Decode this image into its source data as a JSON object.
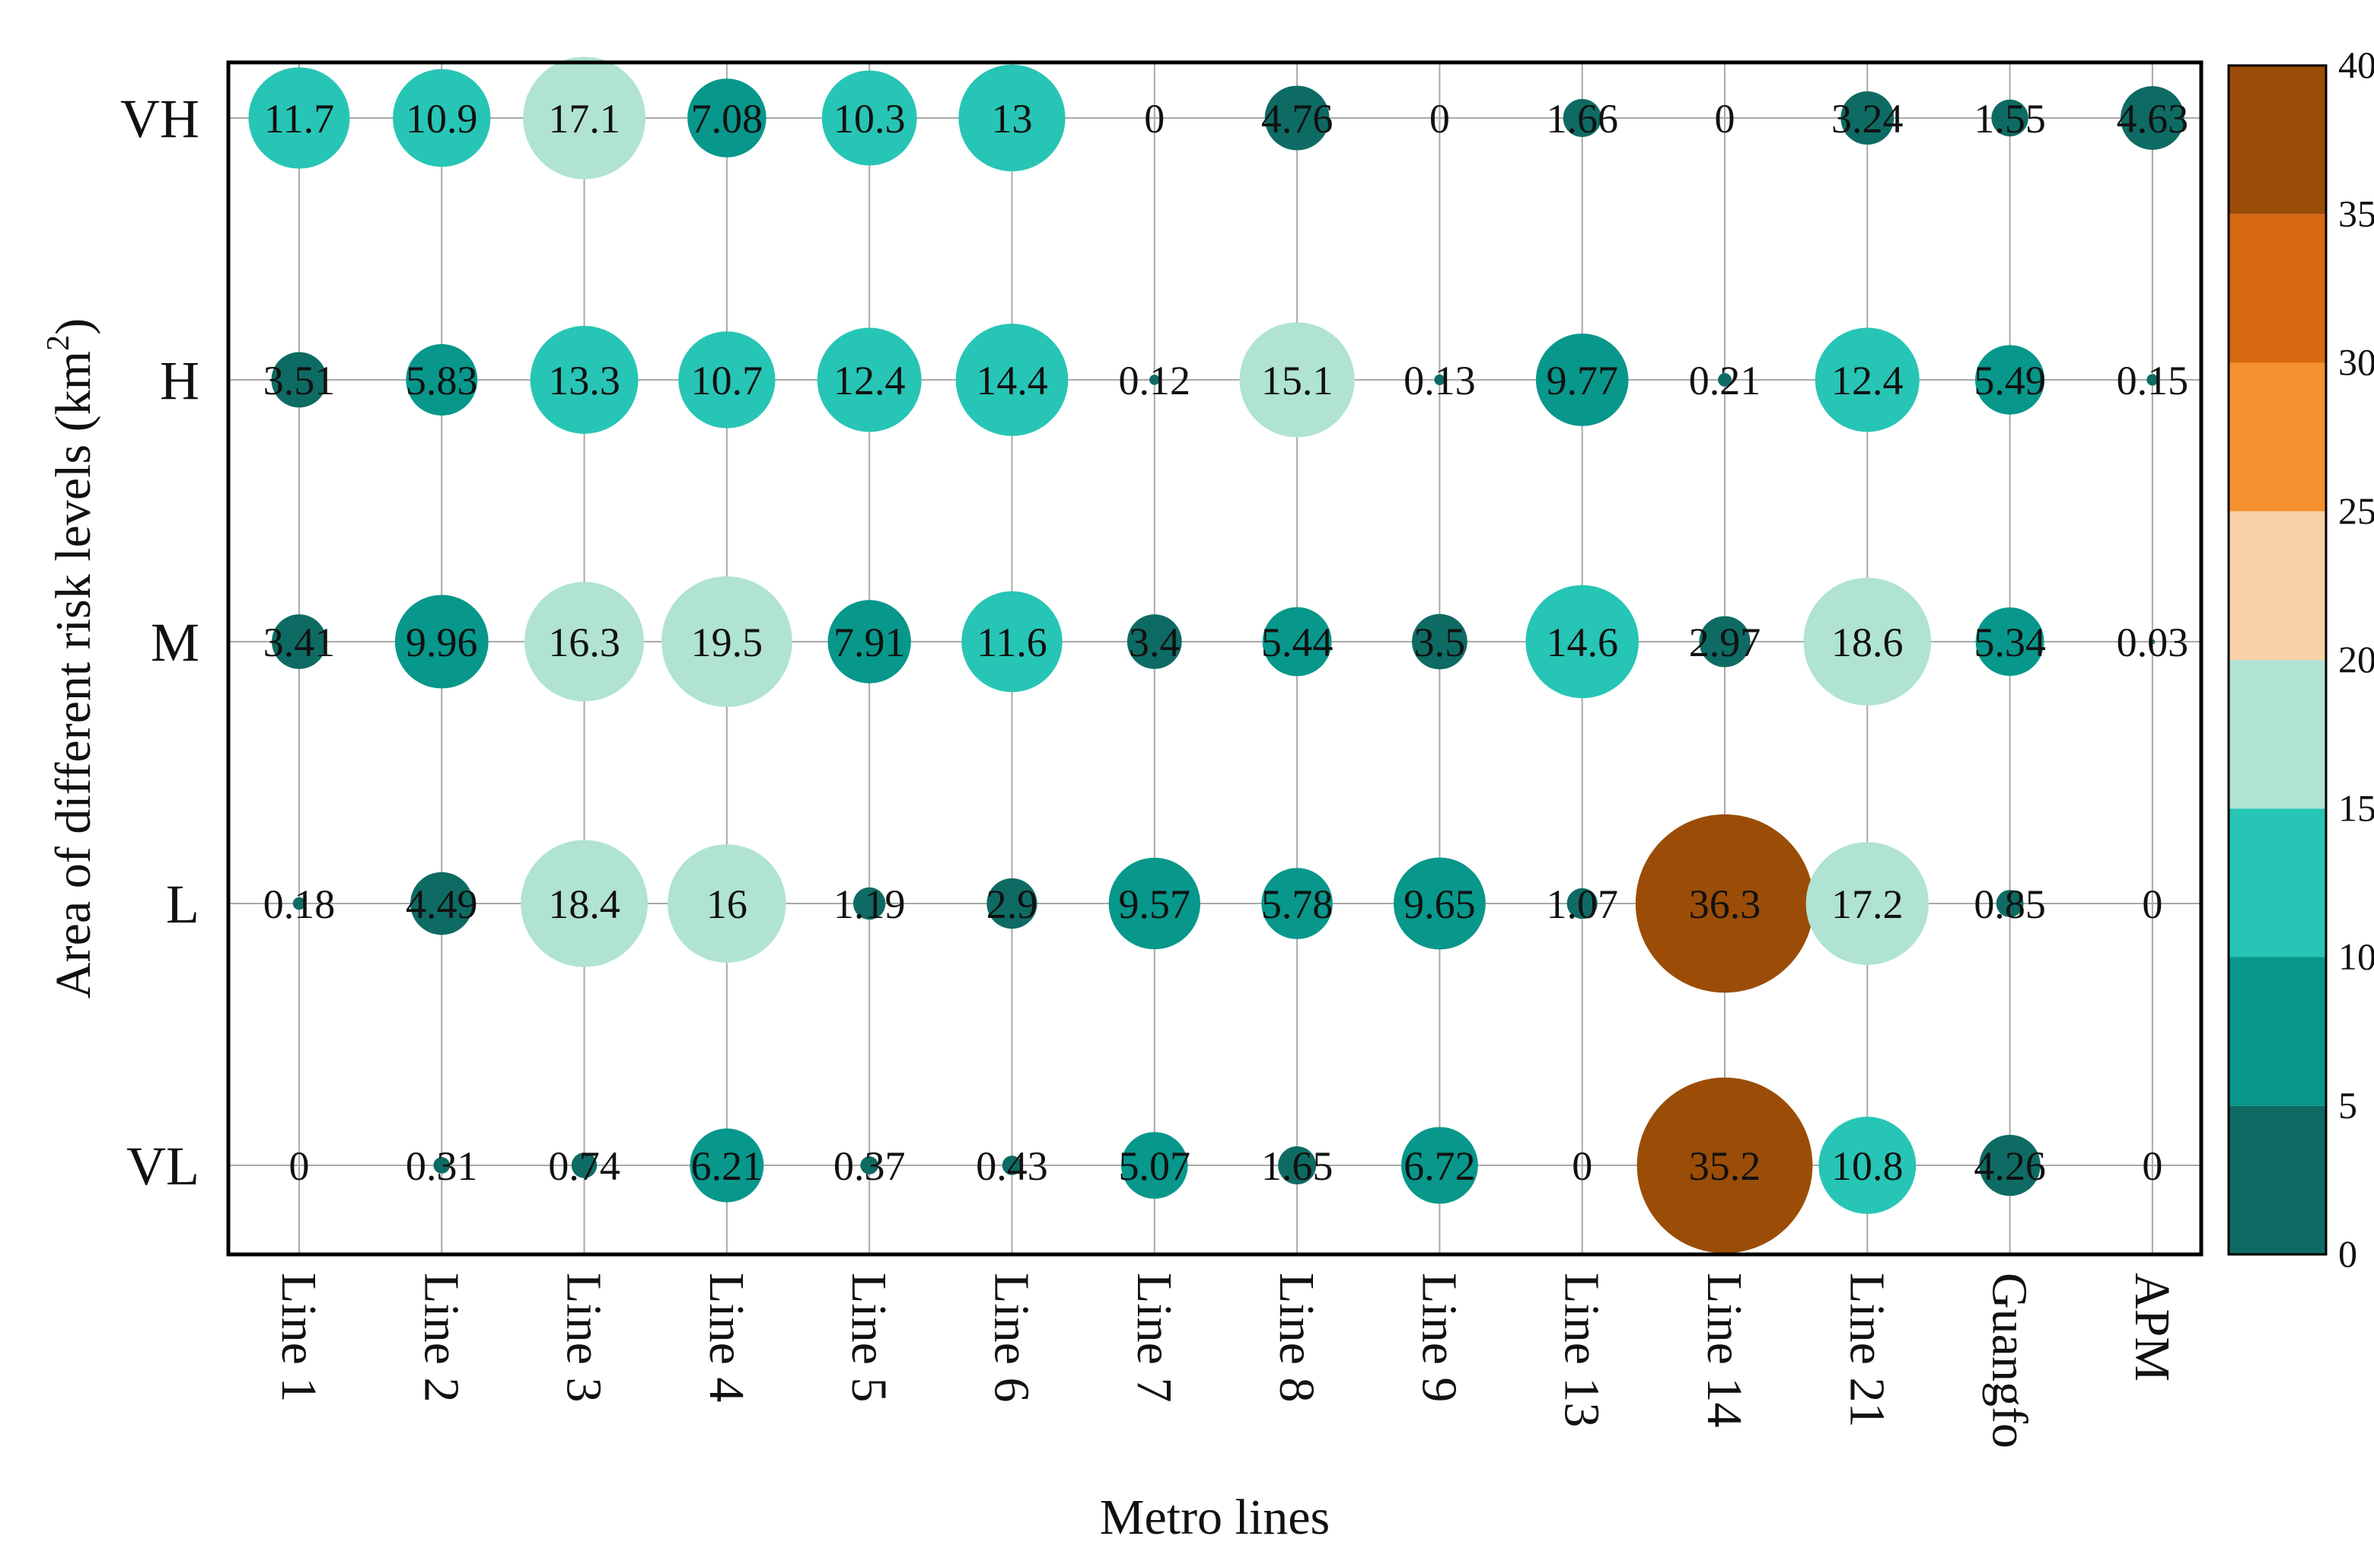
{
  "chart_data": {
    "type": "bubble-matrix",
    "xlabel": "Metro lines",
    "ylabel": "Area of different risk levels (km",
    "ylabel_sup": "2",
    "ylabel_close": ")",
    "categories": [
      "Line 1",
      "Line 2",
      "Line 3",
      "Line 4",
      "Line 5",
      "Line 6",
      "Line 7",
      "Line 8",
      "Line 9",
      "Line 13",
      "Line 14",
      "Line 21",
      "Guangfo",
      "APM"
    ],
    "rows": [
      "VH",
      "H",
      "M",
      "L",
      "VL"
    ],
    "labels": [
      [
        "11.7",
        "10.9",
        "17.1",
        "7.08",
        "10.3",
        "13",
        "0",
        "4.76",
        "0",
        "1.66",
        "0",
        "3.24",
        "1.55",
        "4.63"
      ],
      [
        "3.51",
        "5.83",
        "13.3",
        "10.7",
        "12.4",
        "14.4",
        "0.12",
        "15.1",
        "0.13",
        "9.77",
        "0.21",
        "12.4",
        "5.49",
        "0.15"
      ],
      [
        "3.41",
        "9.96",
        "16.3",
        "19.5",
        "7.91",
        "11.6",
        "3.4",
        "5.44",
        "3.5",
        "14.6",
        "2.97",
        "18.6",
        "5.34",
        "0.03"
      ],
      [
        "0.18",
        "4.49",
        "18.4",
        "16",
        "1.19",
        "2.9",
        "9.57",
        "5.78",
        "9.65",
        "1.07",
        "36.3",
        "17.2",
        "0.85",
        "0"
      ],
      [
        "0",
        "0.31",
        "0.74",
        "6.21",
        "0.37",
        "0.43",
        "5.07",
        "1.65",
        "6.72",
        "0",
        "35.2",
        "10.8",
        "4.26",
        "0"
      ]
    ],
    "values": [
      [
        11.7,
        10.9,
        17.1,
        7.08,
        10.3,
        13,
        0,
        4.76,
        0,
        1.66,
        0,
        3.24,
        1.55,
        4.63
      ],
      [
        3.51,
        5.83,
        13.3,
        10.7,
        12.4,
        14.4,
        0.12,
        15.1,
        0.13,
        9.77,
        0.21,
        12.4,
        5.49,
        0.15
      ],
      [
        3.41,
        9.96,
        16.3,
        19.5,
        7.91,
        11.6,
        3.4,
        5.44,
        3.5,
        14.6,
        2.97,
        18.6,
        5.34,
        0.03
      ],
      [
        0.18,
        4.49,
        18.4,
        16,
        1.19,
        2.9,
        9.57,
        5.78,
        9.65,
        1.07,
        36.3,
        17.2,
        0.85,
        0
      ],
      [
        0,
        0.31,
        0.74,
        6.21,
        0.37,
        0.43,
        5.07,
        1.65,
        6.72,
        0,
        35.2,
        10.8,
        4.26,
        0
      ]
    ],
    "colorbar": {
      "min": 0,
      "max": 40,
      "ticks": [
        "0",
        "5",
        "10",
        "15",
        "20",
        "25",
        "30",
        "35",
        "40"
      ],
      "bins": [
        {
          "from": 0,
          "to": 5,
          "color": "#0e6b63"
        },
        {
          "from": 5,
          "to": 10,
          "color": "#07978b"
        },
        {
          "from": 10,
          "to": 15,
          "color": "#27c5b5"
        },
        {
          "from": 15,
          "to": 20,
          "color": "#b0e3d3"
        },
        {
          "from": 20,
          "to": 25,
          "color": "#f9d1a7"
        },
        {
          "from": 25,
          "to": 30,
          "color": "#f5912e"
        },
        {
          "from": 30,
          "to": 35,
          "color": "#d86a12"
        },
        {
          "from": 35,
          "to": 40,
          "color": "#9b4d07"
        }
      ]
    },
    "grid": true
  }
}
